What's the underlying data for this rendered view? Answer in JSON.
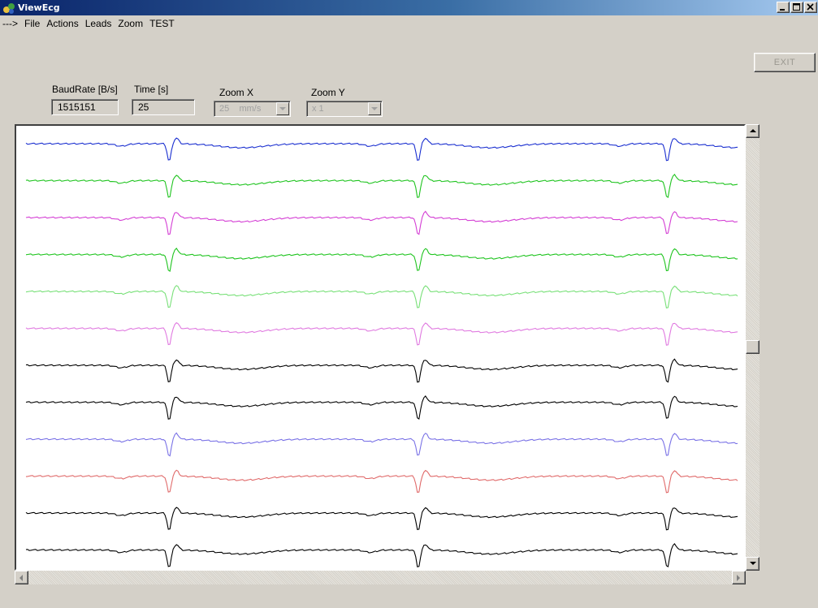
{
  "window": {
    "title": "ViewEcg"
  },
  "menu": [
    "--->",
    "File",
    "Actions",
    "Leads",
    "Zoom",
    "TEST"
  ],
  "exit_button": "EXIT",
  "fields": {
    "baudrate": {
      "label": "BaudRate  [B/s]",
      "value": "1515151"
    },
    "time": {
      "label": "Time [s]",
      "value": "25"
    },
    "zoom_x": {
      "label": "Zoom X",
      "value": "25    mm/s"
    },
    "zoom_y": {
      "label": "Zoom Y",
      "value": "x 1"
    }
  },
  "ecg": {
    "lead_colors": [
      "#1a2fd0",
      "#1fc41f",
      "#d43ed4",
      "#1fc41f",
      "#78e078",
      "#e07ae0",
      "#000000",
      "#000000",
      "#7a72e6",
      "#e06a6a",
      "#000000",
      "#000000"
    ],
    "beat_times": [
      0.2,
      0.55,
      0.9
    ]
  },
  "icons": {
    "app": "viewecg-app-icon",
    "minimize": "minimize-icon",
    "maximize": "maximize-icon",
    "close": "close-icon",
    "scroll_up": "scroll-up-arrow-icon",
    "scroll_down": "scroll-down-arrow-icon",
    "scroll_left": "scroll-left-arrow-icon",
    "scroll_right": "scroll-right-arrow-icon",
    "dropdown": "dropdown-arrow-icon"
  }
}
